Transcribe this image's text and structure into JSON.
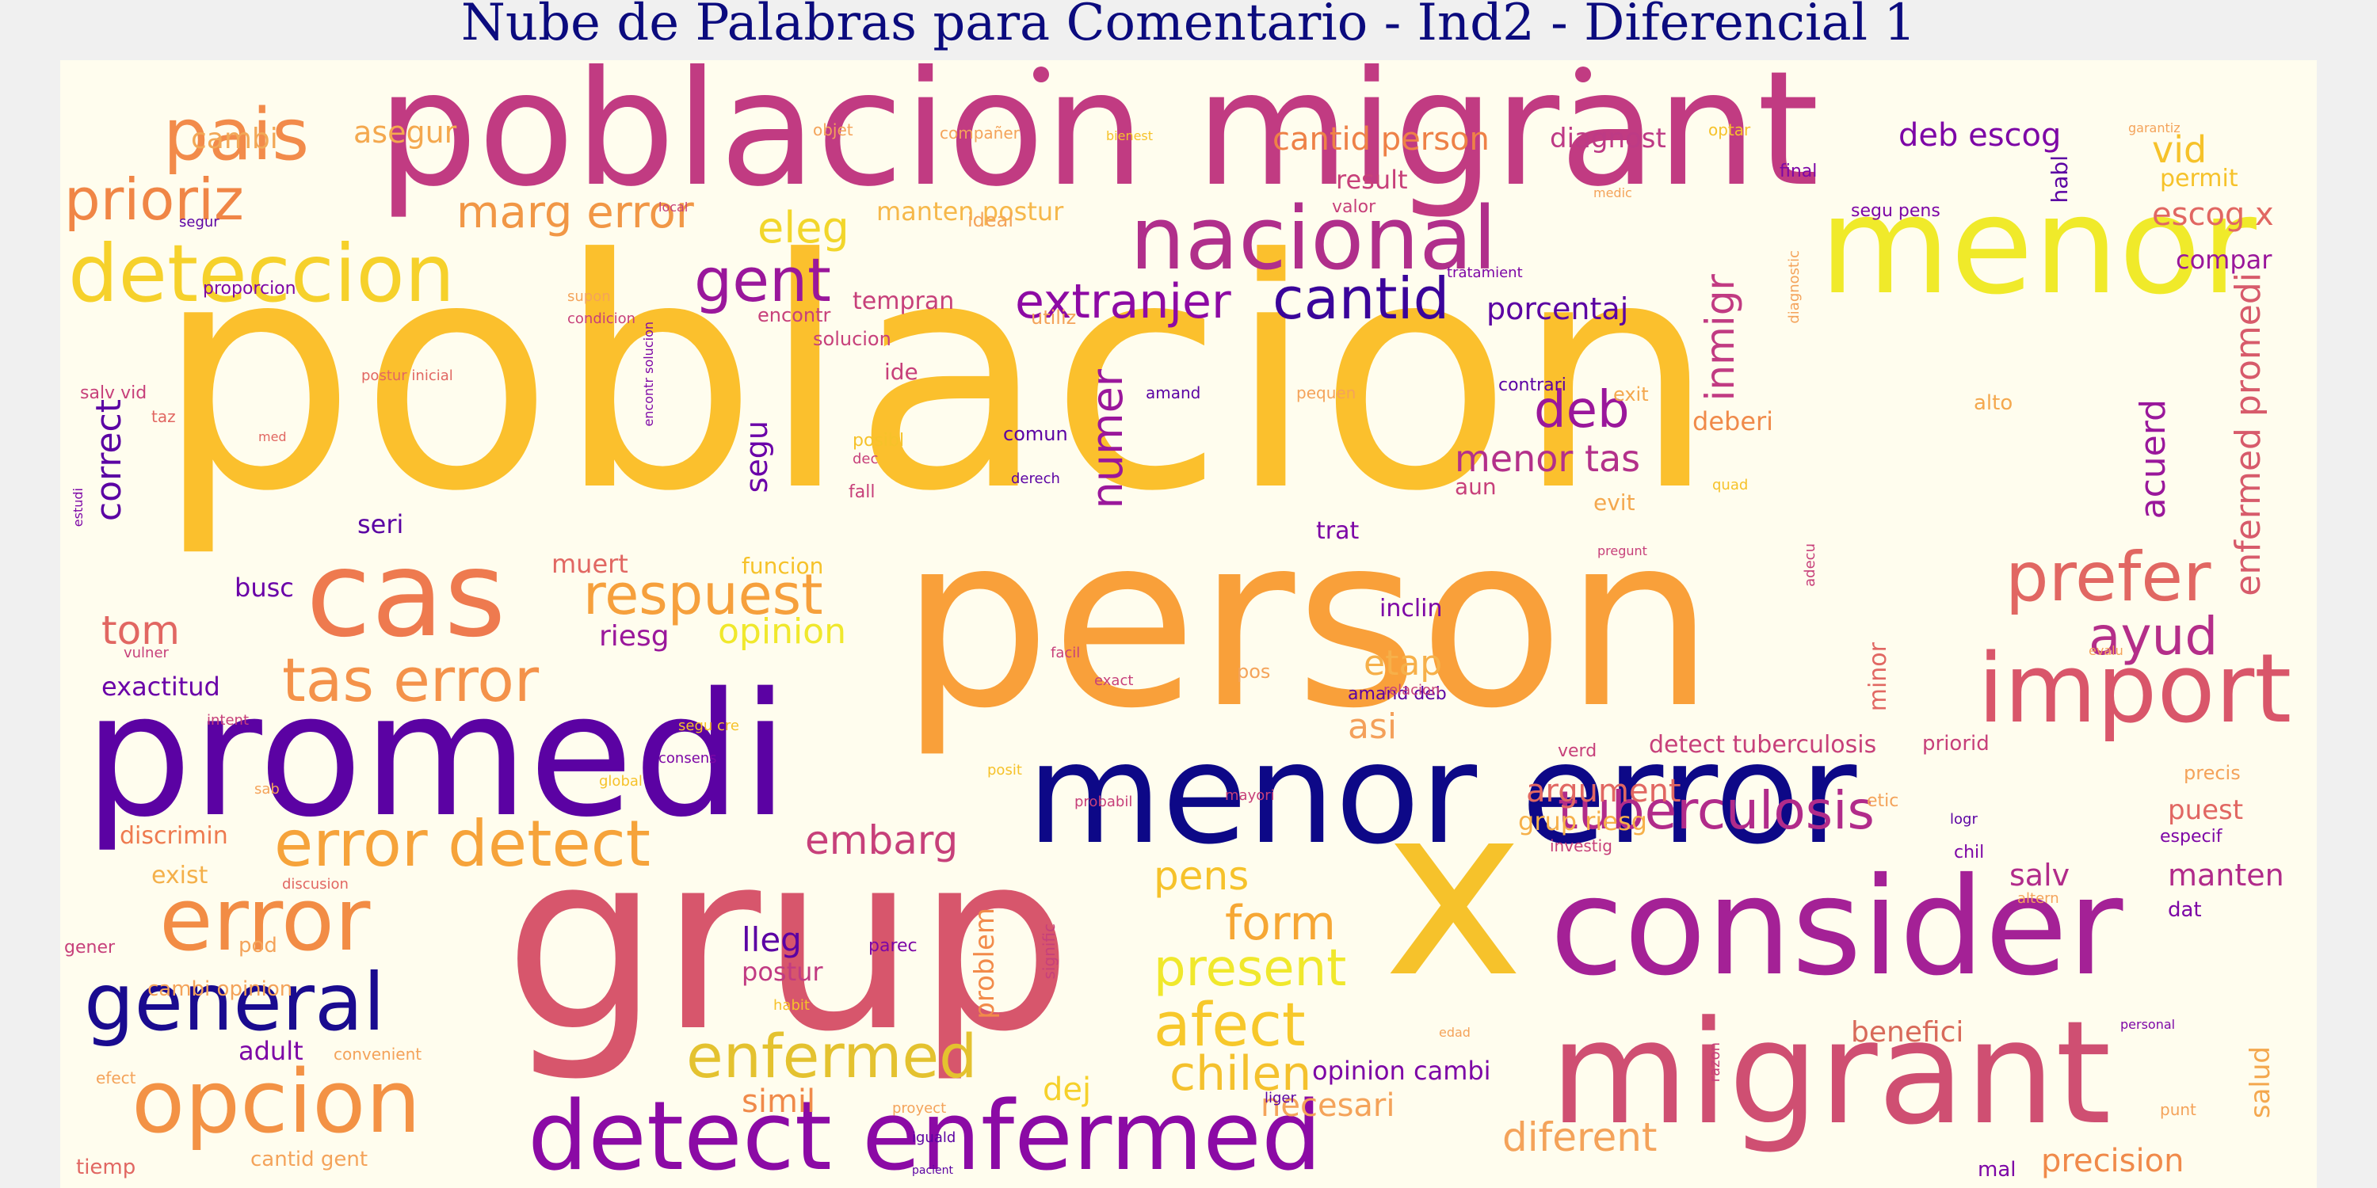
{
  "title": "Nube de Palabras para Comentario - Ind2 - Diferencial 1",
  "palette": {
    "background": "#fffdee",
    "page": "#f0f0f0",
    "title": "#0b0b7e",
    "colormap": [
      "#0d0887",
      "#5b02a3",
      "#9a179b",
      "#cb4678",
      "#eb7852",
      "#fbb32f",
      "#f0f921"
    ]
  },
  "words": {
    "poblacion": "poblacion",
    "person": "person",
    "poblacion_migrant": "poblacion migrant",
    "grup": "grup",
    "x": "x",
    "menor": "menor",
    "promedi": "promedi",
    "menor_error": "menor error",
    "consider": "consider",
    "migrant": "migrant",
    "cas": "cas",
    "nacional": "nacional",
    "detect_enfermed": "detect enfermed",
    "deteccion": "deteccion",
    "pais": "pais",
    "prioriz": "prioriz",
    "import": "import",
    "general": "general",
    "error": "error",
    "opcion": "opcion",
    "error_detect": "error detect",
    "tas_error": "tas error",
    "respuest": "respuest",
    "gent": "gent",
    "cantid": "cantid",
    "extranjer": "extranjer",
    "prefer": "prefer",
    "tuberculosis": "tuberculosis",
    "enfermed": "enfermed",
    "afect": "afect",
    "present": "present",
    "form": "form",
    "chilen": "chilen",
    "deb": "deb",
    "menor_tas": "menor tas",
    "marg_error": "marg error",
    "eleg": "eleg",
    "numer": "numer",
    "inmigr": "inmigr",
    "enfermed_promedi": "enfermed promedi",
    "acuerd": "acuerd",
    "ayud": "ayud",
    "vid": "vid",
    "escog_x": "escog x",
    "deb_escog": "deb escog",
    "cantid_person": "cantid person",
    "diagnost": "diagnost",
    "asegur": "asegur",
    "cambi": "cambi",
    "manten_postur": "manten postur",
    "correct": "correct",
    "segu": "segu",
    "tom": "tom",
    "exactitud": "exactitud",
    "busc": "busc",
    "seri": "seri",
    "muert": "muert",
    "riesg": "riesg",
    "opinion": "opinion",
    "etap": "etap",
    "asi": "asi",
    "embarg": "embarg",
    "pens": "pens",
    "argument": "argument",
    "grup_riesg": "grup riesg",
    "diferent": "diferent",
    "necesari": "necesari",
    "opinion_cambi": "opinion cambi",
    "dej": "dej",
    "simil": "simil",
    "postur": "postur",
    "lleg": "lleg",
    "problem": "problem",
    "adult": "adult",
    "discrimin": "discrimin",
    "exist": "exist",
    "precision": "precision",
    "benefici": "benefici",
    "salud": "salud",
    "salv": "salv",
    "manten": "manten",
    "puest": "puest",
    "detect_tuberculosis": "detect tuberculosis",
    "compar": "compar",
    "porcentaj": "porcentaj",
    "result": "result",
    "valor": "valor",
    "ide": "ide",
    "tempran": "tempran",
    "encontr": "encontr",
    "solucion": "solucion",
    "deberi": "deberi",
    "trat": "trat",
    "aun": "aun",
    "inclin": "inclin",
    "amand_deb": "amand deb",
    "verd": "verd",
    "minor": "minor",
    "funcion": "funcion",
    "posibl": "posibl",
    "fall": "fall",
    "dec": "dec",
    "comun": "comun",
    "derech": "derech",
    "amand": "amand",
    "contrari": "contrari",
    "exit": "exit",
    "evit": "evit",
    "alto": "alto",
    "habl": "habl",
    "final": "final",
    "segu_pens": "segu pens",
    "permit": "permit",
    "optar": "optar",
    "objet": "objet",
    "companer": "compañer",
    "bienest": "bienest",
    "garantiz": "garantiz",
    "ideal": "ideal",
    "local": "local",
    "segur": "segur",
    "proporcion": "proporcion",
    "supon": "supon",
    "condicion": "condicion",
    "utiliz": "utiliz",
    "salv_vid": "salv vid",
    "taz": "taz",
    "postur_inicial": "postur inicial",
    "med": "med",
    "pequen": "pequen",
    "tratamient": "tratamient",
    "medic": "medic",
    "intent": "intent",
    "vulner": "vulner",
    "estudi": "estudi",
    "consens": "consens",
    "segu_cre": "segu cre",
    "exact": "exact",
    "relacion": "relacion",
    "facil": "facil",
    "probabil": "probabil",
    "mayori": "mayori",
    "pos": "pos",
    "priorid": "priorid",
    "etic": "etic",
    "logr": "logr",
    "precis": "precis",
    "especif": "especif",
    "chil": "chil",
    "investig": "investig",
    "dat": "dat",
    "altern": "altern",
    "personal": "personal",
    "punt": "punt",
    "mal": "mal",
    "evalu": "evalu",
    "pregunt": "pregunt",
    "adecu": "adecu",
    "quad": "quad",
    "diagnostic": "diagnostic",
    "encontr_solucion": "encontr solucion",
    "cambi_opinion": "cambi opinion",
    "convenient": "convenient",
    "gener": "gener",
    "pod": "pod",
    "efect": "efect",
    "tiemp": "tiemp",
    "cantid_gent": "cantid gent",
    "igualdad": "iguald",
    "pacient": "pacient",
    "proyect": "proyect",
    "habit": "habit",
    "signific": "signific",
    "parec": "parec",
    "liger": "liger",
    "razon": "razon",
    "edad": "edad",
    "sab": "sab",
    "global": "global",
    "posit": "posit",
    "discusion": "discusion"
  }
}
